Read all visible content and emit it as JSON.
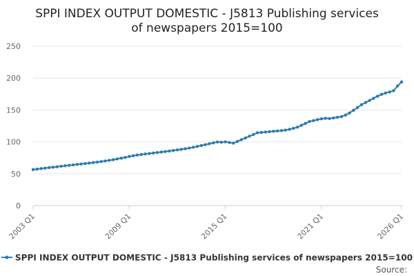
{
  "chart_data": {
    "type": "line",
    "title_lines": [
      "SPPI INDEX OUTPUT DOMESTIC - J5813 Publishing services",
      "of newspapers 2015=100"
    ],
    "x_ticks": [
      "2003 Q1",
      "2009 Q1",
      "2015 Q1",
      "2021 Q1",
      "2026 Q1"
    ],
    "ylim": [
      0,
      250
    ],
    "y_ticks": [
      "0",
      "50",
      "100",
      "150",
      "200",
      "250"
    ],
    "grid": true,
    "legend_position": "bottom",
    "source_label": "Source:",
    "color": "#2b7bb0",
    "series": [
      {
        "name": "SPPI INDEX OUTPUT DOMESTIC - J5813 Publishing services of newspapers 2015=100",
        "x": [
          "2003 Q1",
          "2003 Q2",
          "2003 Q3",
          "2003 Q4",
          "2004 Q1",
          "2004 Q2",
          "2004 Q3",
          "2004 Q4",
          "2005 Q1",
          "2005 Q2",
          "2005 Q3",
          "2005 Q4",
          "2006 Q1",
          "2006 Q2",
          "2006 Q3",
          "2006 Q4",
          "2007 Q1",
          "2007 Q2",
          "2007 Q3",
          "2007 Q4",
          "2008 Q1",
          "2008 Q2",
          "2008 Q3",
          "2008 Q4",
          "2009 Q1",
          "2009 Q2",
          "2009 Q3",
          "2009 Q4",
          "2010 Q1",
          "2010 Q2",
          "2010 Q3",
          "2010 Q4",
          "2011 Q1",
          "2011 Q2",
          "2011 Q3",
          "2011 Q4",
          "2012 Q1",
          "2012 Q2",
          "2012 Q3",
          "2012 Q4",
          "2013 Q1",
          "2013 Q2",
          "2013 Q3",
          "2013 Q4",
          "2014 Q1",
          "2014 Q2",
          "2014 Q3",
          "2014 Q4",
          "2015 Q1",
          "2015 Q2",
          "2015 Q3",
          "2015 Q4",
          "2016 Q1",
          "2016 Q2",
          "2016 Q3",
          "2016 Q4",
          "2017 Q1",
          "2017 Q2",
          "2017 Q3",
          "2017 Q4",
          "2018 Q1",
          "2018 Q2",
          "2018 Q3",
          "2018 Q4",
          "2019 Q1",
          "2019 Q2",
          "2019 Q3",
          "2019 Q4",
          "2020 Q1",
          "2020 Q2",
          "2020 Q3",
          "2020 Q4",
          "2021 Q1",
          "2021 Q2",
          "2021 Q3",
          "2021 Q4",
          "2022 Q1",
          "2022 Q2",
          "2022 Q3",
          "2022 Q4",
          "2023 Q1",
          "2023 Q2",
          "2023 Q3",
          "2023 Q4",
          "2024 Q1",
          "2024 Q2",
          "2024 Q3",
          "2024 Q4",
          "2025 Q1",
          "2025 Q2",
          "2025 Q3",
          "2025 Q4",
          "2026 Q1"
        ],
        "values": [
          56.5,
          57.3,
          58.1,
          58.8,
          59.6,
          60.3,
          61.0,
          61.8,
          62.5,
          63.2,
          63.9,
          64.6,
          65.3,
          66.0,
          66.8,
          67.5,
          68.3,
          69.1,
          70.0,
          71.0,
          72.0,
          73.2,
          74.4,
          75.6,
          77.0,
          78.2,
          79.3,
          80.2,
          81.0,
          81.7,
          82.5,
          83.3,
          84.0,
          84.8,
          85.6,
          86.5,
          87.4,
          88.3,
          89.2,
          90.3,
          91.5,
          92.8,
          94.2,
          95.6,
          97.0,
          98.4,
          99.8,
          99.5,
          100.0,
          99.0,
          98.0,
          100.7,
          103.4,
          106.1,
          108.8,
          111.5,
          114.2,
          114.8,
          115.4,
          116.0,
          116.6,
          117.1,
          117.6,
          118.4,
          119.6,
          121.3,
          123.0,
          126.0,
          129.0,
          131.9,
          133.3,
          134.8,
          136.1,
          137.0,
          136.5,
          137.5,
          138.6,
          139.6,
          142.0,
          145.4,
          149.5,
          153.9,
          158.3,
          161.7,
          164.9,
          168.3,
          171.6,
          174.5,
          176.6,
          178.2,
          180.3,
          187.7,
          194.0
        ]
      }
    ]
  }
}
